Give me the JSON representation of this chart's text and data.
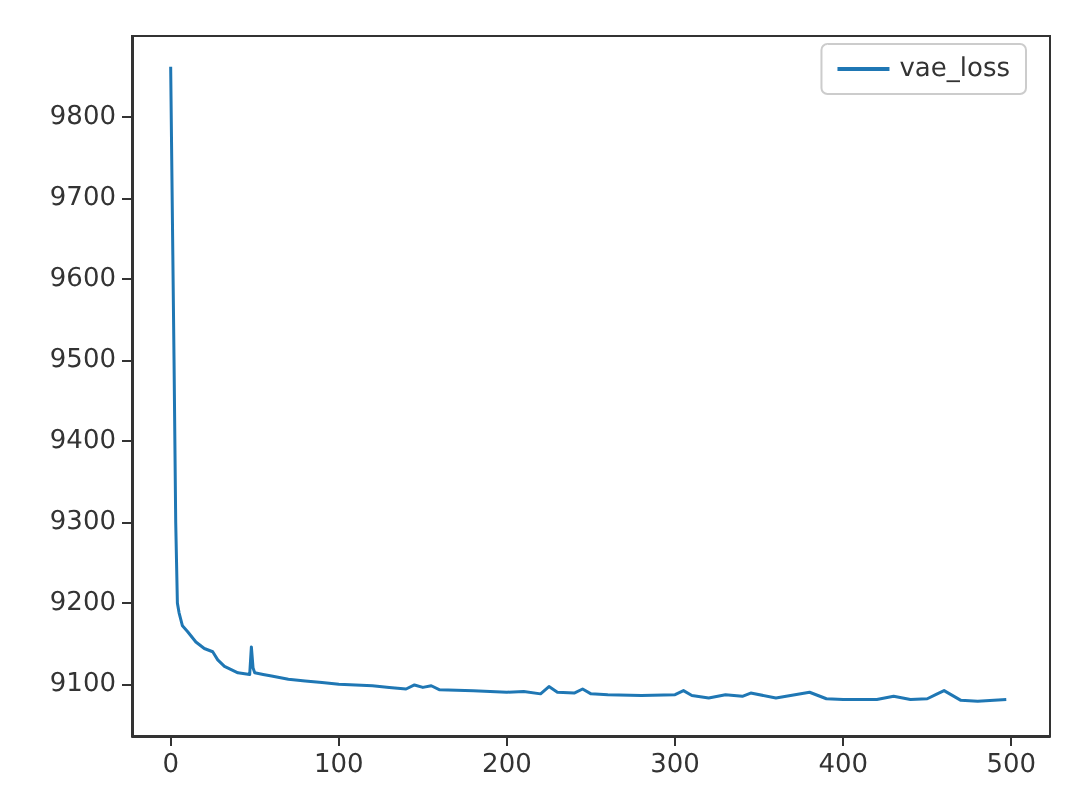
{
  "chart_data": {
    "type": "line",
    "x": [
      0,
      2,
      3,
      4,
      5,
      7,
      10,
      15,
      20,
      25,
      28,
      32,
      40,
      47,
      48,
      49,
      50,
      55,
      60,
      70,
      80,
      90,
      100,
      110,
      120,
      130,
      140,
      145,
      150,
      155,
      160,
      180,
      200,
      210,
      220,
      225,
      230,
      240,
      245,
      250,
      260,
      280,
      300,
      305,
      310,
      320,
      330,
      340,
      345,
      360,
      380,
      390,
      400,
      420,
      430,
      440,
      450,
      455,
      460,
      470,
      480,
      497
    ],
    "series": [
      {
        "name": "vae_loss",
        "color": "#1f77b4",
        "values": [
          9862,
          9500,
          9300,
          9200,
          9188,
          9172,
          9165,
          9152,
          9144,
          9140,
          9130,
          9122,
          9114,
          9112,
          9146,
          9120,
          9114,
          9112,
          9110,
          9106,
          9104,
          9102,
          9100,
          9099,
          9098,
          9096,
          9094,
          9099,
          9096,
          9098,
          9093,
          9092,
          9090,
          9091,
          9088,
          9097,
          9090,
          9089,
          9094,
          9088,
          9087,
          9086,
          9087,
          9092,
          9086,
          9083,
          9087,
          9085,
          9089,
          9083,
          9090,
          9082,
          9081,
          9081,
          9085,
          9081,
          9082,
          9087,
          9092,
          9080,
          9079,
          9081
        ]
      }
    ],
    "xlim": [
      -23,
      523
    ],
    "ylim": [
      9036,
      9900
    ],
    "xticks": [
      0,
      100,
      200,
      300,
      400,
      500
    ],
    "yticks": [
      9100,
      9200,
      9300,
      9400,
      9500,
      9600,
      9700,
      9800
    ],
    "grid": false,
    "legend": "top right"
  }
}
